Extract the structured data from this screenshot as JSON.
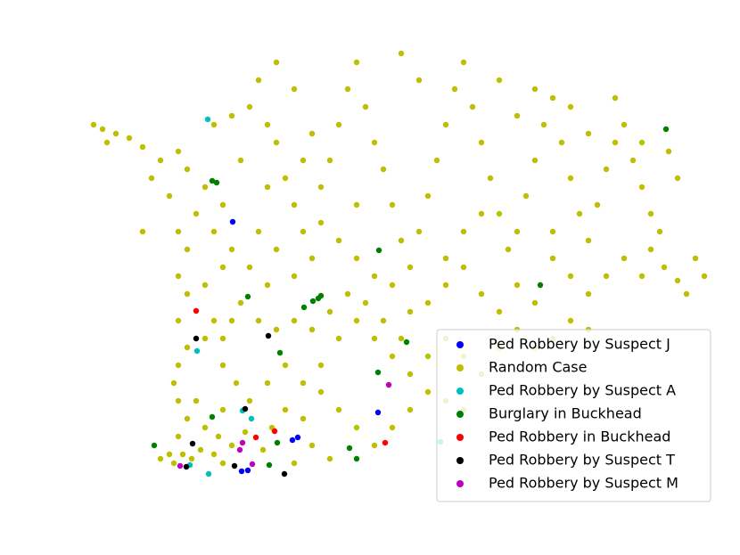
{
  "chart_data": {
    "type": "scatter",
    "xlim": [
      0,
      700
    ],
    "ylim": [
      0,
      520
    ],
    "legend": "lower right",
    "series": [
      {
        "name": "Ped Robbery by Suspect J",
        "color": "#0000ff",
        "x": [
          161,
          324,
          228,
          234,
          171,
          178
        ],
        "values": [
          311,
          97,
          66,
          69,
          31,
          32
        ]
      },
      {
        "name": "Random Case",
        "color": "#bfbf00",
        "x": [
          5,
          15,
          30,
          45,
          20,
          60,
          80,
          100,
          110,
          70,
          90,
          130,
          150,
          120,
          140,
          160,
          110,
          100,
          130,
          150,
          170,
          180,
          190,
          200,
          210,
          220,
          230,
          240,
          260,
          270,
          280,
          290,
          300,
          310,
          320,
          330,
          340,
          350,
          360,
          370,
          380,
          390,
          400,
          410,
          420,
          430,
          440,
          450,
          460,
          470,
          480,
          490,
          500,
          510,
          520,
          530,
          540,
          550,
          560,
          570,
          580,
          590,
          600,
          610,
          620,
          630,
          640,
          650,
          660,
          645,
          620,
          600,
          670,
          660,
          580,
          560,
          540,
          520,
          500,
          480,
          460,
          440,
          420,
          400,
          380,
          360,
          340,
          320,
          300,
          280,
          260,
          250,
          230,
          210,
          200,
          190,
          180,
          170,
          160,
          150,
          140,
          130,
          150,
          165,
          180,
          200,
          220,
          240,
          260,
          280,
          300,
          320,
          340,
          360,
          380,
          400,
          420,
          440,
          460,
          480,
          500,
          520,
          540,
          560,
          380,
          400,
          420,
          360,
          340,
          320,
          300,
          280,
          260,
          240,
          220,
          250,
          230,
          270,
          130,
          100,
          90,
          80,
          95,
          105,
          115,
          125,
          140,
          150,
          160,
          145,
          110,
          120,
          100,
          95,
          100,
          110,
          100,
          110,
          60,
          100,
          190,
          210,
          230,
          250,
          270,
          290,
          310,
          330,
          350,
          250,
          230,
          210,
          350,
          370,
          460,
          480,
          500,
          540,
          560,
          590,
          620,
          630,
          680,
          690,
          200,
          240,
          160,
          140,
          300,
          420,
          440,
          520,
          400,
          150,
          175,
          195,
          205
        ],
        "values": [
          420,
          415,
          410,
          405,
          400,
          395,
          380,
          390,
          370,
          360,
          340,
          350,
          330,
          320,
          300,
          280,
          280,
          250,
          240,
          260,
          380,
          440,
          470,
          420,
          400,
          360,
          330,
          300,
          350,
          380,
          420,
          460,
          490,
          440,
          400,
          370,
          330,
          290,
          260,
          300,
          340,
          380,
          420,
          460,
          490,
          440,
          400,
          360,
          320,
          280,
          300,
          340,
          380,
          420,
          450,
          400,
          360,
          320,
          290,
          330,
          370,
          400,
          420,
          380,
          350,
          320,
          300,
          390,
          360,
          260,
          250,
          270,
          230,
          245,
          250,
          230,
          250,
          270,
          220,
          240,
          210,
          230,
          260,
          240,
          220,
          210,
          240,
          250,
          270,
          290,
          310,
          270,
          250,
          280,
          240,
          300,
          260,
          220,
          200,
          180,
          200,
          180,
          150,
          130,
          110,
          130,
          150,
          130,
          150,
          180,
          200,
          180,
          160,
          140,
          160,
          180,
          160,
          140,
          170,
          190,
          170,
          180,
          200,
          190,
          120,
          110,
          100,
          100,
          80,
          60,
          80,
          100,
          120,
          90,
          100,
          60,
          40,
          45,
          80,
          70,
          50,
          45,
          40,
          50,
          45,
          55,
          50,
          40,
          60,
          70,
          90,
          110,
          110,
          130,
          150,
          170,
          200,
          230,
          300,
          300,
          200,
          190,
          200,
          190,
          210,
          230,
          220,
          200,
          180,
          410,
          460,
          490,
          500,
          470,
          470,
          430,
          460,
          440,
          410,
          450,
          400,
          280,
          270,
          250,
          350,
          380,
          430,
          420,
          330,
          300,
          320,
          300,
          270,
          100,
          75,
          55,
          80
        ]
      },
      {
        "name": "Ped Robbery by Suspect A",
        "color": "#00bfbf",
        "x": [
          133,
          121,
          182,
          172,
          113,
          134,
          394
        ],
        "values": [
          426,
          166,
          90,
          99,
          38,
          28,
          64
        ]
      },
      {
        "name": "Burglary in Buckhead",
        "color": "#008000",
        "x": [
          138,
          143,
          325,
          178,
          251,
          257,
          260,
          241,
          506,
          356,
          214,
          324,
          138,
          73,
          211,
          202,
          292,
          300,
          647
        ],
        "values": [
          357,
          355,
          279,
          227,
          222,
          225,
          228,
          215,
          240,
          176,
          164,
          142,
          92,
          60,
          63,
          38,
          57,
          45,
          415
        ]
      },
      {
        "name": "Ped Robbery in Buckhead",
        "color": "#ff0000",
        "x": [
          120,
          208,
          187,
          332
        ],
        "values": [
          211,
          76,
          69,
          63
        ]
      },
      {
        "name": "Ped Robbery by Suspect T",
        "color": "#000000",
        "x": [
          120,
          201,
          175,
          116,
          163,
          109,
          219
        ],
        "values": [
          180,
          183,
          101,
          62,
          37,
          36,
          28
        ]
      },
      {
        "name": "Ped Robbery by Suspect M",
        "color": "#bf00bf",
        "x": [
          336,
          172,
          169,
          183,
          102
        ],
        "values": [
          128,
          63,
          55,
          39,
          37
        ]
      }
    ]
  }
}
